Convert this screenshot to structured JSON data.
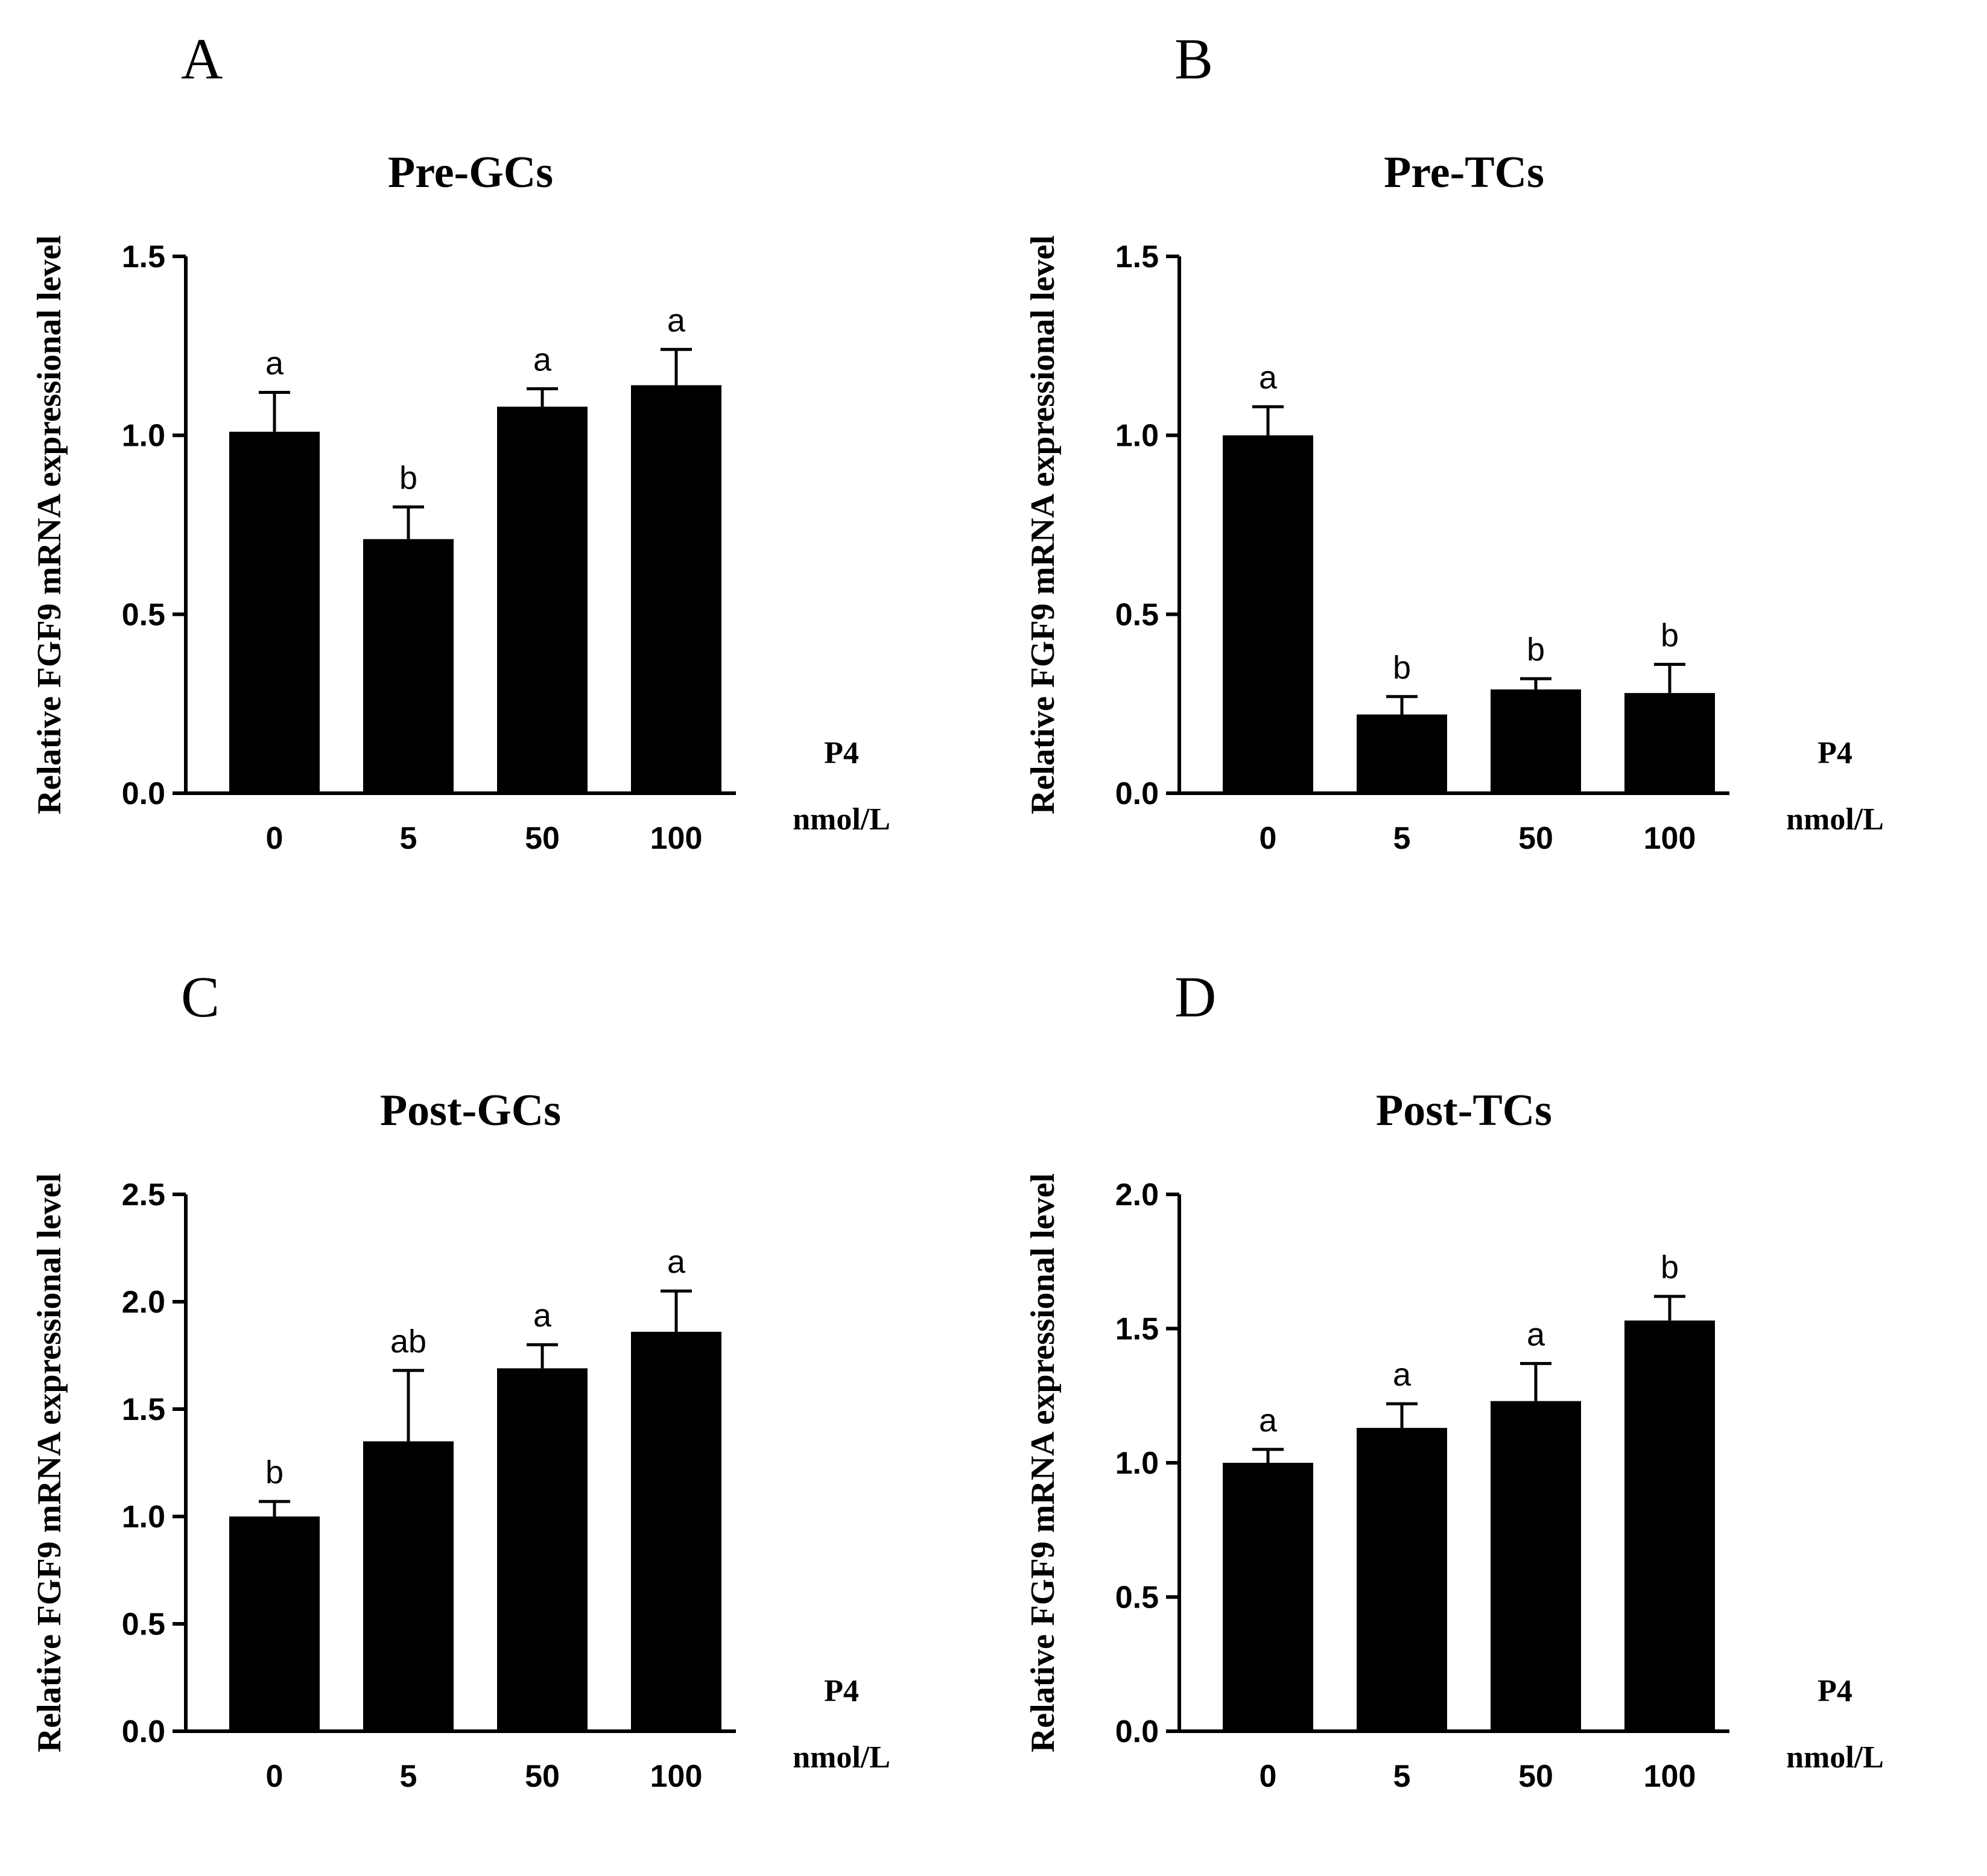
{
  "chart_data": [
    {
      "panel": "A",
      "type": "bar",
      "title": "Pre-GCs",
      "ylabel": "Relative FGF9 mRNA expressional level",
      "xlabel": [
        "P4",
        "nmol/L"
      ],
      "categories": [
        "0",
        "5",
        "50",
        "100"
      ],
      "values": [
        1.01,
        0.71,
        1.08,
        1.14
      ],
      "errors": [
        0.11,
        0.09,
        0.05,
        0.1
      ],
      "labels": [
        "a",
        "b",
        "a",
        "a"
      ],
      "ylim": [
        0,
        1.5
      ],
      "yticks": [
        "0.0",
        "0.5",
        "1.0",
        "1.5"
      ],
      "bar_color": "#000000"
    },
    {
      "panel": "B",
      "type": "bar",
      "title": "Pre-TCs",
      "ylabel": "Relative FGF9 mRNA expressional level",
      "xlabel": [
        "P4",
        "nmol/L"
      ],
      "categories": [
        "0",
        "5",
        "50",
        "100"
      ],
      "values": [
        1.0,
        0.22,
        0.29,
        0.28
      ],
      "errors": [
        0.08,
        0.05,
        0.03,
        0.08
      ],
      "labels": [
        "a",
        "b",
        "b",
        "b"
      ],
      "ylim": [
        0,
        1.5
      ],
      "yticks": [
        "0.0",
        "0.5",
        "1.0",
        "1.5"
      ],
      "bar_color": "#000000"
    },
    {
      "panel": "C",
      "type": "bar",
      "title": "Post-GCs",
      "ylabel": "Relative FGF9 mRNA expressional level",
      "xlabel": [
        "P4",
        "nmol/L"
      ],
      "categories": [
        "0",
        "5",
        "50",
        "100"
      ],
      "values": [
        1.0,
        1.35,
        1.69,
        1.86
      ],
      "errors": [
        0.07,
        0.33,
        0.11,
        0.19
      ],
      "labels": [
        "b",
        "ab",
        "a",
        "a"
      ],
      "ylim": [
        0,
        2.5
      ],
      "yticks": [
        "0.0",
        "0.5",
        "1.0",
        "1.5",
        "2.0",
        "2.5"
      ],
      "bar_color": "#000000"
    },
    {
      "panel": "D",
      "type": "bar",
      "title": "Post-TCs",
      "ylabel": "Relative FGF9 mRNA expressional level",
      "xlabel": [
        "P4",
        "nmol/L"
      ],
      "categories": [
        "0",
        "5",
        "50",
        "100"
      ],
      "values": [
        1.0,
        1.13,
        1.23,
        1.53
      ],
      "errors": [
        0.05,
        0.09,
        0.14,
        0.09
      ],
      "labels": [
        "a",
        "a",
        "a",
        "b"
      ],
      "ylim": [
        0,
        2.0
      ],
      "yticks": [
        "0.0",
        "0.5",
        "1.0",
        "1.5",
        "2.0"
      ],
      "bar_color": "#000000"
    }
  ]
}
